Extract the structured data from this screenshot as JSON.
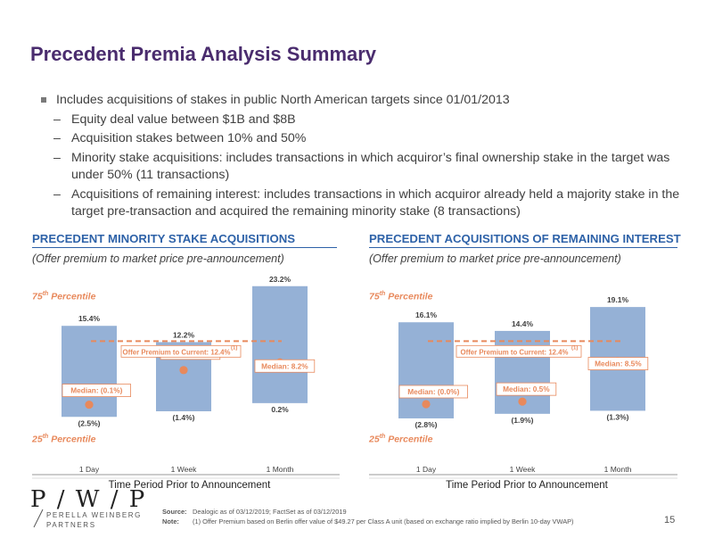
{
  "title": "Precedent Premia Analysis Summary",
  "bullets": {
    "main": "Includes acquisitions of stakes in public North American targets since 01/01/2013",
    "subs": [
      "Equity deal value between $1B and $8B",
      "Acquisition stakes between 10% and 50%",
      "Minority stake acquisitions: includes transactions in which acquiror’s final ownership stake in the target was under 50% (11 transactions)",
      "Acquisitions of remaining interest: includes transactions in which acquiror already held a majority stake in the target pre-transaction and acquired the remaining minority stake (8 transactions)"
    ]
  },
  "labels": {
    "p75_prefix": "75",
    "p25_prefix": "25",
    "th": "th",
    "percentile": "Percentile",
    "x_title": "Time Period Prior to Announcement",
    "offer_text": "Offer Premium to Current: 12.4%",
    "offer_note": "(1)"
  },
  "chart_data": [
    {
      "type": "bar",
      "title": "PRECEDENT MINORITY STAKE ACQUISITIONS",
      "subtitle": "(Offer premium to market price pre-announcement)",
      "xlabel": "Time Period Prior to Announcement",
      "categories": [
        "1 Day",
        "1 Week",
        "1 Month"
      ],
      "p75": [
        15.4,
        12.2,
        23.2
      ],
      "p25": [
        -2.5,
        -1.4,
        0.2
      ],
      "median": [
        -0.1,
        6.7,
        8.2
      ],
      "p75_labels": [
        "15.4%",
        "12.2%",
        "23.2%"
      ],
      "p25_labels": [
        "(2.5%)",
        "(1.4%)",
        "0.2%"
      ],
      "median_labels": [
        "Median: (0.1%)",
        "Median: 6.7%",
        "Median: 8.2%"
      ],
      "offer_premium": 12.4,
      "ylim": [
        -4,
        26
      ]
    },
    {
      "type": "bar",
      "title": "PRECEDENT ACQUISITIONS OF REMAINING INTEREST",
      "subtitle": "(Offer premium to market price pre-announcement)",
      "xlabel": "Time Period Prior to Announcement",
      "categories": [
        "1 Day",
        "1 Week",
        "1 Month"
      ],
      "p75": [
        16.1,
        14.4,
        19.1
      ],
      "p25": [
        -2.8,
        -1.9,
        -1.3
      ],
      "median": [
        0.0,
        0.5,
        8.5
      ],
      "p75_labels": [
        "16.1%",
        "14.4%",
        "19.1%"
      ],
      "p25_labels": [
        "(2.8%)",
        "(1.9%)",
        "(1.3%)"
      ],
      "median_labels": [
        "Median: (0.0%)",
        "Median: 0.5%",
        "Median: 8.5%"
      ],
      "offer_premium": 12.4,
      "ylim": [
        -4,
        26
      ]
    }
  ],
  "footer": {
    "source_label": "Source:",
    "source_text": "Dealogic as of 03/12/2019; FactSet as of 03/12/2019",
    "note_label": "Note:",
    "note_text": "(1)   Offer Premium based on Berlin offer value of $49.27 per Class A unit (based on exchange ratio implied by Berlin 10-day VWAP)",
    "page": "15"
  },
  "logo": {
    "mark": "P / W / P",
    "line1": "PERELLA WEINBERG",
    "line2": "PARTNERS"
  },
  "colors": {
    "title": "#4a2c6e",
    "section": "#2e62a8",
    "bar": "#95b1d6",
    "accent": "#e8895c"
  }
}
